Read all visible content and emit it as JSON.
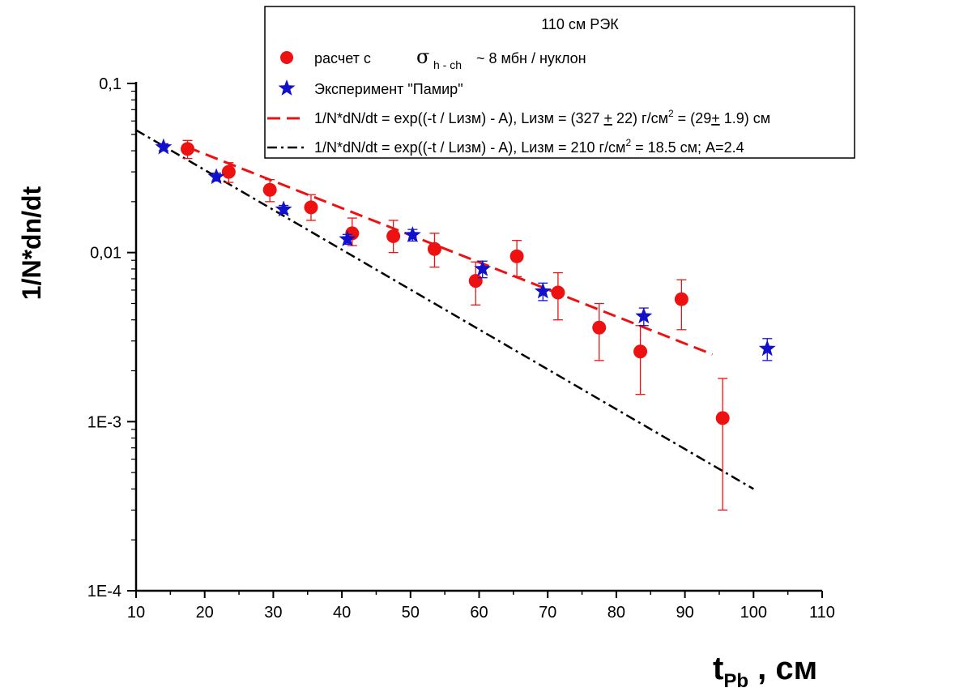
{
  "chart_data": {
    "type": "scatter",
    "title": "110 см РЭК",
    "xlabel": "t",
    "xlabel_sub": "Pb",
    "xlabel_suffix": " , см",
    "ylabel": "1/N*dn/dt",
    "xlim": [
      10,
      110
    ],
    "ylim": [
      0.0001,
      0.1
    ],
    "yscale": "log",
    "grid": false,
    "legend_position": "top-right",
    "x_ticks": [
      10,
      20,
      30,
      40,
      50,
      60,
      70,
      80,
      90,
      100,
      110
    ],
    "y_ticks": [
      {
        "value": 0.1,
        "label": "0,1"
      },
      {
        "value": 0.01,
        "label": "0,01"
      },
      {
        "value": 0.001,
        "label": "1E-3"
      },
      {
        "value": 0.0001,
        "label": "1E-4"
      }
    ],
    "series": [
      {
        "name_prefix": "расчет с",
        "name_sigma": "σ",
        "name_sigma_sub": "h - ch",
        "name_suffix": "~  8 мбн / нуклон",
        "marker": "circle",
        "color": "#ee1111",
        "points": [
          {
            "x": 17.5,
            "y": 0.041,
            "err_lo": 0.036,
            "err_hi": 0.046
          },
          {
            "x": 23.5,
            "y": 0.03,
            "err_lo": 0.026,
            "err_hi": 0.034
          },
          {
            "x": 29.5,
            "y": 0.0235,
            "err_lo": 0.02,
            "err_hi": 0.027
          },
          {
            "x": 35.5,
            "y": 0.0185,
            "err_lo": 0.0155,
            "err_hi": 0.022
          },
          {
            "x": 41.5,
            "y": 0.013,
            "err_lo": 0.011,
            "err_hi": 0.016
          },
          {
            "x": 47.5,
            "y": 0.0125,
            "err_lo": 0.01,
            "err_hi": 0.0155
          },
          {
            "x": 53.5,
            "y": 0.0105,
            "err_lo": 0.0082,
            "err_hi": 0.013
          },
          {
            "x": 59.5,
            "y": 0.0068,
            "err_lo": 0.0049,
            "err_hi": 0.0088
          },
          {
            "x": 65.5,
            "y": 0.0095,
            "err_lo": 0.0072,
            "err_hi": 0.0118
          },
          {
            "x": 71.5,
            "y": 0.0058,
            "err_lo": 0.004,
            "err_hi": 0.0076
          },
          {
            "x": 77.5,
            "y": 0.0036,
            "err_lo": 0.0023,
            "err_hi": 0.005
          },
          {
            "x": 83.5,
            "y": 0.0026,
            "err_lo": 0.00145,
            "err_hi": 0.0037
          },
          {
            "x": 89.5,
            "y": 0.0053,
            "err_lo": 0.0035,
            "err_hi": 0.0069
          },
          {
            "x": 95.5,
            "y": 0.00105,
            "err_lo": 0.0003,
            "err_hi": 0.0018
          }
        ]
      },
      {
        "name": "Эксперимент \"Памир\"",
        "marker": "star",
        "color": "#1111cc",
        "points": [
          {
            "x": 14,
            "y": 0.042,
            "err_lo": 0.04,
            "err_hi": 0.044
          },
          {
            "x": 21.7,
            "y": 0.028,
            "err_lo": 0.0265,
            "err_hi": 0.0295
          },
          {
            "x": 31.5,
            "y": 0.018,
            "err_lo": 0.017,
            "err_hi": 0.019
          },
          {
            "x": 40.8,
            "y": 0.012,
            "err_lo": 0.0112,
            "err_hi": 0.0128
          },
          {
            "x": 50.3,
            "y": 0.0127,
            "err_lo": 0.0117,
            "err_hi": 0.0137
          },
          {
            "x": 60.5,
            "y": 0.008,
            "err_lo": 0.0071,
            "err_hi": 0.0089
          },
          {
            "x": 69.3,
            "y": 0.0059,
            "err_lo": 0.0052,
            "err_hi": 0.0066
          },
          {
            "x": 84,
            "y": 0.0042,
            "err_lo": 0.0037,
            "err_hi": 0.0047
          },
          {
            "x": 102,
            "y": 0.0027,
            "err_lo": 0.0023,
            "err_hi": 0.0031
          }
        ]
      }
    ],
    "fits": [
      {
        "style": "dashed",
        "color": "#ee1111",
        "x": [
          17.5,
          94
        ],
        "y": [
          0.042,
          0.0025
        ],
        "label_main": "1/N*dN/dt = exp((-t / Lизм) - A),  Lизм = (327 ",
        "label_pm1": "+",
        "label_mid": " 22) г/см",
        "label_sup": "2",
        "label_mid2": " = (29",
        "label_pm2": "+",
        "label_end": " 1.9) см"
      },
      {
        "style": "dashdot",
        "color": "#000000",
        "x": [
          10,
          100
        ],
        "y": [
          0.053,
          0.0004
        ],
        "label_main": "1/N*dN/dt = exp((-t / Lизм) - A),  Lизм = 210 г/см",
        "label_sup": "2",
        "label_end": " = 18.5 см;  A=2.4"
      }
    ]
  }
}
